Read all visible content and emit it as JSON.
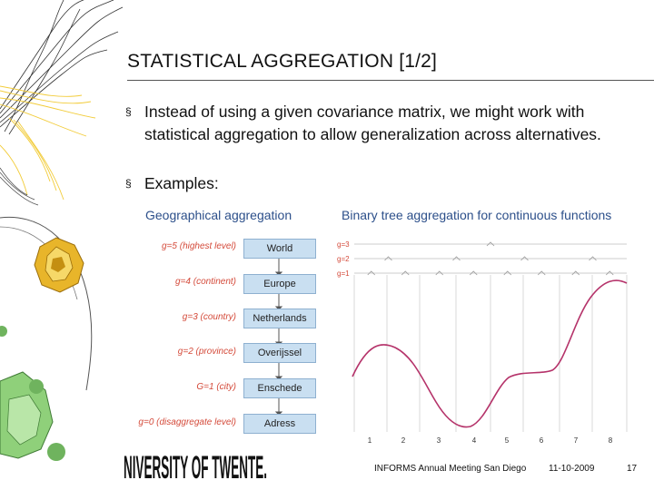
{
  "slide": {
    "title": "STATISTICAL AGGREGATION [1/2]",
    "bullets": [
      {
        "marker": "§",
        "text": "Instead of using a given covariance matrix, we might work with statistical aggregation to allow generalization across alternatives."
      },
      {
        "marker": "§",
        "text": "Examples:"
      }
    ],
    "left_example": {
      "heading": "Geographical aggregation",
      "levels": [
        {
          "label": "g=5 (highest level)",
          "box": "World"
        },
        {
          "label": "g=4 (continent)",
          "box": "Europe"
        },
        {
          "label": "g=3 (country)",
          "box": "Netherlands"
        },
        {
          "label": "g=2 (province)",
          "box": "Overijssel"
        },
        {
          "label": "G=1 (city)",
          "box": "Enschede"
        },
        {
          "label": "g=0 (disaggregate level)",
          "box": "Adress"
        }
      ]
    },
    "right_example": {
      "heading": "Binary tree aggregation for continuous functions",
      "level_labels": [
        "g=3",
        "g=2",
        "g=1"
      ],
      "x_ticks": [
        "1",
        "2",
        "3",
        "4",
        "5",
        "6",
        "7",
        "8"
      ],
      "curve_color": "#b5336a"
    }
  },
  "footer": {
    "logo_text": "NIVERSITY OF TWENTE.",
    "meeting": "INFORMS Annual Meeting San Diego",
    "date": "11-10-2009",
    "page": "17"
  },
  "colors": {
    "subheading": "#2c4f8a",
    "level_label": "#d44a3a",
    "box_fill": "#c9dff1"
  }
}
